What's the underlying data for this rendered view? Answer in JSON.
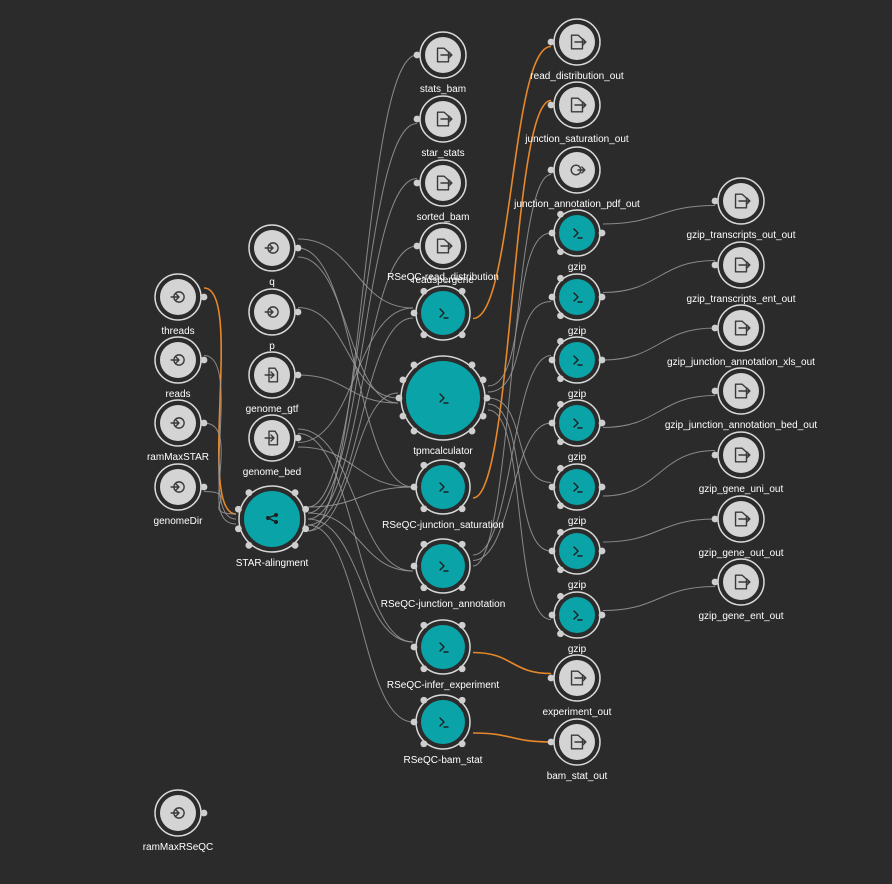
{
  "colors": {
    "background": "#2b2b2b",
    "tool": "#0aa3a8",
    "io": "#d4d4d4",
    "edge": "#9a9a9a",
    "highlight_edge": "#e8882a",
    "label": "#ffffff"
  },
  "nodes": [
    {
      "id": "threads",
      "label": "threads",
      "kind": "input"
    },
    {
      "id": "reads",
      "label": "reads",
      "kind": "input"
    },
    {
      "id": "ramMaxSTAR",
      "label": "ramMaxSTAR",
      "kind": "input"
    },
    {
      "id": "genomeDir",
      "label": "genomeDir",
      "kind": "input"
    },
    {
      "id": "ramMaxRSeQC",
      "label": "ramMaxRSeQC",
      "kind": "input"
    },
    {
      "id": "q",
      "label": "q",
      "kind": "input"
    },
    {
      "id": "p",
      "label": "p",
      "kind": "input"
    },
    {
      "id": "genome_gtf",
      "label": "genome_gtf",
      "kind": "file-input"
    },
    {
      "id": "genome_bed",
      "label": "genome_bed",
      "kind": "file-input"
    },
    {
      "id": "star_alignment",
      "label": "STAR-alingment",
      "kind": "workflow"
    },
    {
      "id": "stats_bam",
      "label": "stats_bam",
      "kind": "output"
    },
    {
      "id": "star_stats",
      "label": "star_stats",
      "kind": "output"
    },
    {
      "id": "sorted_bam",
      "label": "sorted_bam",
      "kind": "output"
    },
    {
      "id": "readspergene",
      "label": "readspergene",
      "kind": "output"
    },
    {
      "id": "rseqc_read_distribution",
      "label": "RSeQC-read_distribution",
      "kind": "tool"
    },
    {
      "id": "tpmcalculator",
      "label": "tpmcalculator",
      "kind": "tool-large"
    },
    {
      "id": "rseqc_junction_saturation",
      "label": "RSeQC-junction_saturation",
      "kind": "tool"
    },
    {
      "id": "rseqc_junction_annotation",
      "label": "RSeQC-junction_annotation",
      "kind": "tool"
    },
    {
      "id": "rseqc_infer_experiment",
      "label": "RSeQC-infer_experiment",
      "kind": "tool"
    },
    {
      "id": "rseqc_bam_stat",
      "label": "RSeQC-bam_stat",
      "kind": "tool"
    },
    {
      "id": "read_distribution_out",
      "label": "read_distribution_out",
      "kind": "output"
    },
    {
      "id": "junction_saturation_out",
      "label": "junction_saturation_out",
      "kind": "output"
    },
    {
      "id": "junction_annotation_pdf_out",
      "label": "junction_annotation_pdf_out",
      "kind": "output-cycle"
    },
    {
      "id": "gzip1",
      "label": "gzip",
      "kind": "tool"
    },
    {
      "id": "gzip2",
      "label": "gzip",
      "kind": "tool"
    },
    {
      "id": "gzip3",
      "label": "gzip",
      "kind": "tool"
    },
    {
      "id": "gzip4",
      "label": "gzip",
      "kind": "tool"
    },
    {
      "id": "gzip5",
      "label": "gzip",
      "kind": "tool"
    },
    {
      "id": "gzip6",
      "label": "gzip",
      "kind": "tool"
    },
    {
      "id": "gzip7",
      "label": "gzip",
      "kind": "tool"
    },
    {
      "id": "experiment_out",
      "label": "experiment_out",
      "kind": "output"
    },
    {
      "id": "bam_stat_out",
      "label": "bam_stat_out",
      "kind": "output"
    },
    {
      "id": "gzip_transcripts_out_out",
      "label": "gzip_transcripts_out_out",
      "kind": "output"
    },
    {
      "id": "gzip_transcripts_ent_out",
      "label": "gzip_transcripts_ent_out",
      "kind": "output"
    },
    {
      "id": "gzip_junction_annotation_xls_out",
      "label": "gzip_junction_annotation_xls_out",
      "kind": "output"
    },
    {
      "id": "gzip_junction_annotation_bed_out",
      "label": "gzip_junction_annotation_bed_out",
      "kind": "output"
    },
    {
      "id": "gzip_gene_uni_out",
      "label": "gzip_gene_uni_out",
      "kind": "output"
    },
    {
      "id": "gzip_gene_out_out",
      "label": "gzip_gene_out_out",
      "kind": "output"
    },
    {
      "id": "gzip_gene_ent_out",
      "label": "gzip_gene_ent_out",
      "kind": "output"
    }
  ],
  "edges": [
    [
      "threads",
      "star_alignment",
      true
    ],
    [
      "reads",
      "star_alignment",
      false
    ],
    [
      "ramMaxSTAR",
      "star_alignment",
      false
    ],
    [
      "genomeDir",
      "star_alignment",
      false
    ],
    [
      "star_alignment",
      "stats_bam",
      false
    ],
    [
      "star_alignment",
      "star_stats",
      false
    ],
    [
      "star_alignment",
      "sorted_bam",
      false
    ],
    [
      "star_alignment",
      "readspergene",
      false
    ],
    [
      "star_alignment",
      "rseqc_read_distribution",
      false
    ],
    [
      "star_alignment",
      "tpmcalculator",
      false
    ],
    [
      "star_alignment",
      "rseqc_junction_saturation",
      false
    ],
    [
      "star_alignment",
      "rseqc_junction_annotation",
      false
    ],
    [
      "star_alignment",
      "rseqc_infer_experiment",
      false
    ],
    [
      "star_alignment",
      "rseqc_bam_stat",
      false
    ],
    [
      "q",
      "tpmcalculator",
      false
    ],
    [
      "q",
      "rseqc_read_distribution",
      false
    ],
    [
      "p",
      "tpmcalculator",
      false
    ],
    [
      "genome_gtf",
      "tpmcalculator",
      false
    ],
    [
      "genome_bed",
      "rseqc_read_distribution",
      false
    ],
    [
      "genome_bed",
      "rseqc_junction_saturation",
      false
    ],
    [
      "genome_bed",
      "rseqc_junction_annotation",
      false
    ],
    [
      "genome_bed",
      "rseqc_infer_experiment",
      false
    ],
    [
      "q",
      "rseqc_junction_saturation",
      false
    ],
    [
      "rseqc_read_distribution",
      "read_distribution_out",
      true
    ],
    [
      "rseqc_junction_saturation",
      "junction_saturation_out",
      true
    ],
    [
      "tpmcalculator",
      "gzip1",
      false
    ],
    [
      "tpmcalculator",
      "gzip2",
      false
    ],
    [
      "tpmcalculator",
      "gzip5",
      false
    ],
    [
      "tpmcalculator",
      "gzip6",
      false
    ],
    [
      "tpmcalculator",
      "gzip7",
      false
    ],
    [
      "rseqc_junction_annotation",
      "gzip3",
      false
    ],
    [
      "rseqc_junction_annotation",
      "gzip4",
      false
    ],
    [
      "rseqc_junction_annotation",
      "junction_annotation_pdf_out",
      false
    ],
    [
      "rseqc_infer_experiment",
      "experiment_out",
      true
    ],
    [
      "rseqc_bam_stat",
      "bam_stat_out",
      true
    ],
    [
      "gzip1",
      "gzip_transcripts_out_out",
      false
    ],
    [
      "gzip2",
      "gzip_transcripts_ent_out",
      false
    ],
    [
      "gzip3",
      "gzip_junction_annotation_xls_out",
      false
    ],
    [
      "gzip4",
      "gzip_junction_annotation_bed_out",
      false
    ],
    [
      "gzip5",
      "gzip_gene_uni_out",
      false
    ],
    [
      "gzip6",
      "gzip_gene_out_out",
      false
    ],
    [
      "gzip7",
      "gzip_gene_ent_out",
      false
    ]
  ]
}
